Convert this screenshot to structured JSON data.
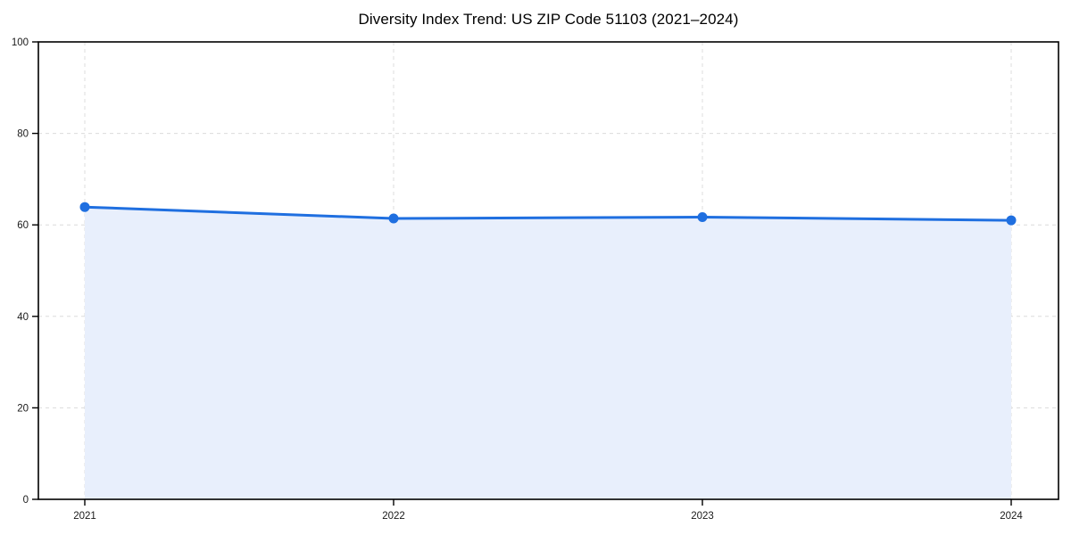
{
  "page": {
    "title": "Diversity Index Trend: US ZIP Code 51103 (2021–2024)"
  },
  "chart_data": {
    "type": "line",
    "title": "Diversity Index Trend: US ZIP Code 51103 (2021–2024)",
    "categories": [
      "2021",
      "2022",
      "2023",
      "2024"
    ],
    "series": [
      {
        "name": "Diversity Index",
        "values": [
          63.9,
          61.4,
          61.7,
          61.0
        ]
      }
    ],
    "xlabel": "",
    "ylabel": "",
    "ylim": [
      0,
      100
    ],
    "yticks": [
      0,
      20,
      40,
      60,
      80,
      100
    ],
    "grid": "dashed",
    "legend": "none",
    "area_fill": true,
    "markers": true,
    "colors": {
      "line": "#1f6fe0",
      "marker": "#1f6fe0",
      "area": "#e8effc",
      "grid": "#dcdcdc",
      "frame": "#000000",
      "tick_label": "#1a1a1a",
      "title": "#000000",
      "background": "#ffffff"
    }
  }
}
